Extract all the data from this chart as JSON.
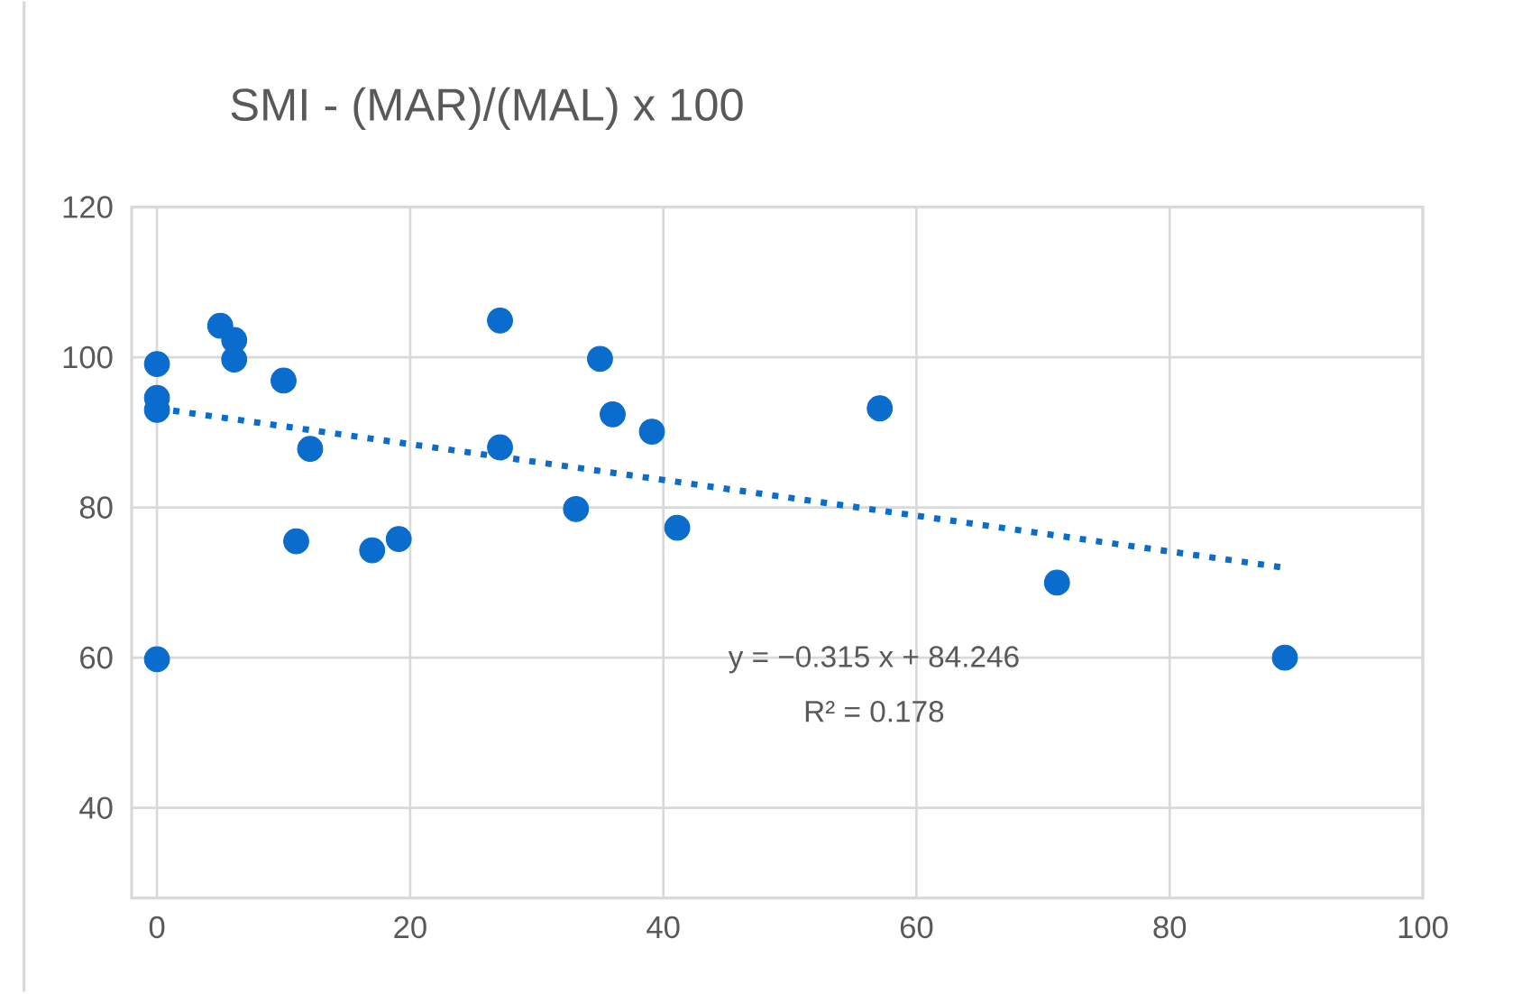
{
  "chart_data": {
    "type": "scatter",
    "title": "SMI - (MAR)/(MAL) x 100",
    "xlim": [
      -2,
      100
    ],
    "ylim": [
      28,
      120
    ],
    "xticks": [
      0,
      20,
      40,
      60,
      80,
      100
    ],
    "yticks": [
      40,
      60,
      80,
      100,
      120
    ],
    "grid": true,
    "legend": false,
    "series": [
      {
        "color": "#0a6ccc",
        "marker": "circle",
        "x": [
          0,
          0,
          0,
          0,
          5.0,
          6.1,
          6.1,
          10.0,
          12.1,
          11.0,
          17.0,
          19.1,
          27.1,
          27.1,
          35.0,
          36.0,
          39.1,
          33.1,
          41.1,
          57.1,
          71.1,
          89.1
        ],
        "values": [
          99.1,
          94.6,
          93.0,
          59.8,
          104.2,
          102.3,
          99.7,
          96.9,
          87.8,
          75.5,
          74.3,
          75.8,
          104.9,
          88.0,
          99.8,
          92.4,
          90.1,
          79.8,
          77.3,
          93.2,
          70.0,
          60.0
        ]
      },
      {
        "type": "line",
        "color": "#0a6ccc",
        "line_style": "dotted",
        "marker": "none",
        "x": [
          0,
          89
        ],
        "values": [
          93.2,
          72.0
        ]
      }
    ],
    "annotations": [
      "y = −0.315  x + 84.246",
      "R² = 0.178"
    ]
  }
}
